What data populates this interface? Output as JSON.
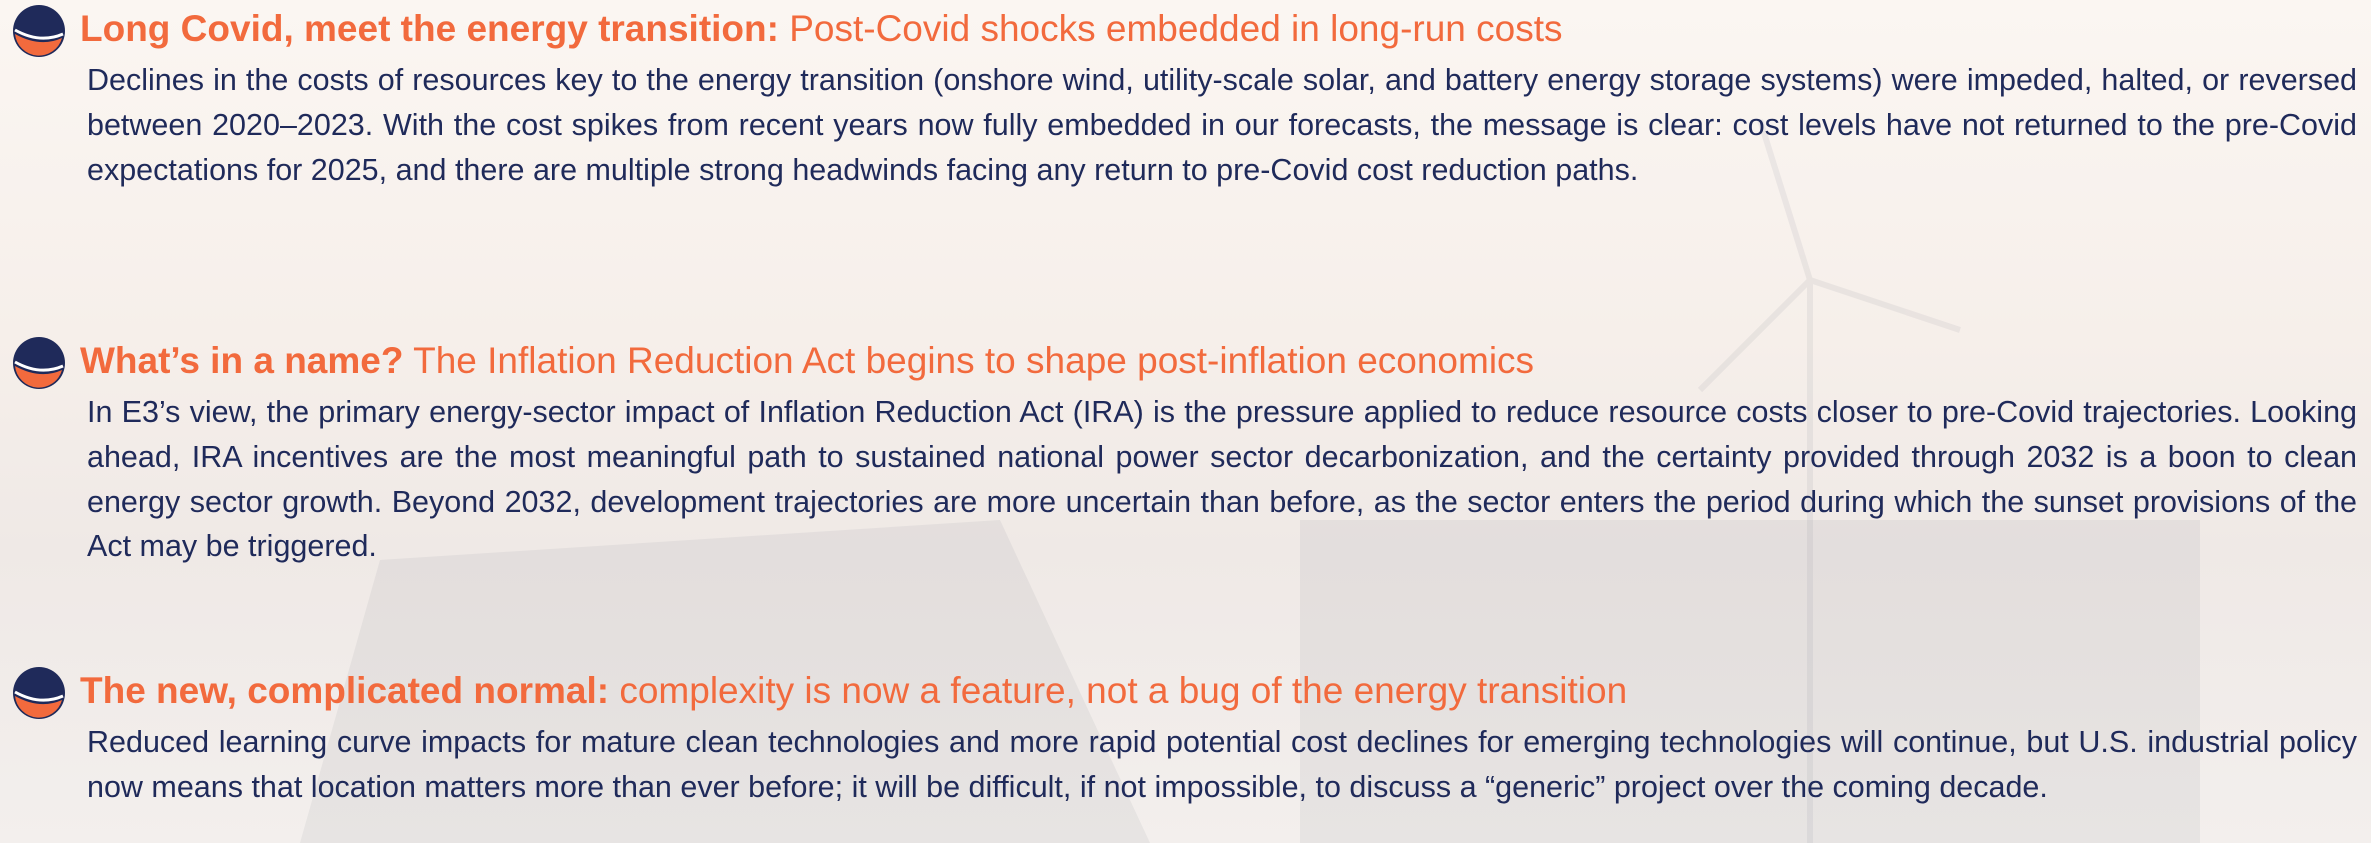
{
  "sections": [
    {
      "heading_bold": "Long Covid, meet the energy transition:",
      "heading_rest": "Post-Covid shocks embedded in long-run costs",
      "body": "Declines in the costs of resources key to the energy transition (onshore wind, utility-scale solar, and battery energy storage systems) were impeded, halted, or reversed between 2020–2023. With the cost spikes from recent years now fully embedded in our forecasts, the message is clear: cost levels have not returned to the pre-Covid expectations for 2025, and there are multiple strong headwinds facing any return to pre-Covid cost reduction paths."
    },
    {
      "heading_bold": "What’s in a name?",
      "heading_rest": "The Inflation Reduction Act begins to shape post-inflation economics",
      "body": "In E3’s view, the primary energy-sector impact of Inflation Reduction Act (IRA) is the pressure applied to reduce resource costs closer to pre-Covid trajectories. Looking ahead, IRA incentives are the most meaningful path to sustained national power sector decarbonization, and the certainty provided through 2032 is a boon to clean energy sector growth. Beyond 2032, development trajectories are more uncertain than before, as the sector enters the period during which the sunset provisions of the Act may be triggered."
    },
    {
      "heading_bold": "The new, complicated normal:",
      "heading_rest": "complexity is now a feature, not a bug of the energy transition",
      "body": "Reduced learning curve impacts for mature clean technologies and more rapid potential cost declines for emerging technologies will continue, but U.S. industrial policy now means that location matters more than ever before; it will be difficult, if not impossible, to discuss a “generic” project over the coming decade."
    }
  ]
}
